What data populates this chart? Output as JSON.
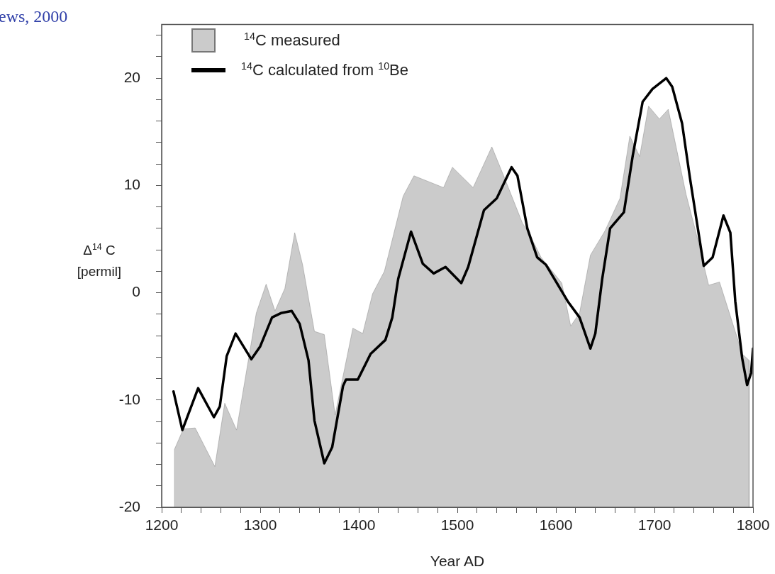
{
  "chart_data": {
    "type": "line",
    "ylabel": "Δ$^{14}$ C\n[permil]",
    "xlabel": "Year AD",
    "annotations": [
      "ews, 2000"
    ],
    "xlim": [
      1200,
      1800
    ],
    "ylim": [
      -20,
      25
    ],
    "xticks": [
      1200,
      {
        "value": 1220,
        "label": null
      },
      {
        "value": 1240,
        "label": null
      },
      {
        "value": 1260,
        "label": null
      },
      {
        "value": 1280,
        "label": null
      },
      1300,
      {
        "value": 1320,
        "label": null
      },
      {
        "value": 1340,
        "label": null
      },
      {
        "value": 1360,
        "label": null
      },
      {
        "value": 1380,
        "label": null
      },
      1400,
      {
        "value": 1420,
        "label": null
      },
      {
        "value": 1440,
        "label": null
      },
      {
        "value": 1460,
        "label": null
      },
      {
        "value": 1480,
        "label": null
      },
      1500,
      {
        "value": 1520,
        "label": null
      },
      {
        "value": 1540,
        "label": null
      },
      {
        "value": 1560,
        "label": null
      },
      {
        "value": 1580,
        "label": null
      },
      1600,
      {
        "value": 1620,
        "label": null
      },
      {
        "value": 1640,
        "label": null
      },
      {
        "value": 1660,
        "label": null
      },
      {
        "value": 1680,
        "label": null
      },
      1700,
      {
        "value": 1720,
        "label": null
      },
      {
        "value": 1740,
        "label": null
      },
      {
        "value": 1760,
        "label": null
      },
      {
        "value": 1780,
        "label": null
      },
      1800
    ],
    "yticks": [
      -20,
      {
        "value": -18,
        "label": null
      },
      {
        "value": -16,
        "label": null
      },
      {
        "value": -14,
        "label": null
      },
      {
        "value": -12,
        "label": null
      },
      -10,
      {
        "value": -8,
        "label": null
      },
      {
        "value": -6,
        "label": null
      },
      {
        "value": -4,
        "label": null
      },
      {
        "value": -2,
        "label": null
      },
      0,
      {
        "value": 2,
        "label": null
      },
      {
        "value": 4,
        "label": null
      },
      {
        "value": 6,
        "label": null
      },
      {
        "value": 8,
        "label": null
      },
      10,
      {
        "value": 12,
        "label": null
      },
      {
        "value": 14,
        "label": null
      },
      {
        "value": 16,
        "label": null
      },
      {
        "value": 18,
        "label": null
      },
      20,
      {
        "value": 22,
        "label": null
      },
      {
        "value": 24,
        "label": null
      }
    ],
    "legend": "top left",
    "series": [
      {
        "name": "$^{14}$C measured",
        "type": "area",
        "color": "#cbcbcb",
        "x": [
          1213,
          1213,
          1222,
          1234,
          1254,
          1264,
          1276,
          1296,
          1306,
          1315,
          1325,
          1335,
          1343,
          1355,
          1365,
          1376,
          1394,
          1404,
          1414,
          1426,
          1445,
          1456,
          1486,
          1495,
          1516,
          1524,
          1535,
          1547,
          1566,
          1573,
          1585,
          1606,
          1615,
          1624,
          1635,
          1650,
          1665,
          1675,
          1685,
          1694,
          1705,
          1714,
          1732,
          1741,
          1755,
          1766,
          1784,
          1789,
          1796,
          1796
        ],
        "values": [
          -20,
          -14.6,
          -12.7,
          -12.6,
          -16.2,
          -10.3,
          -12.8,
          -1.9,
          0.8,
          -1.7,
          0.4,
          5.6,
          2.6,
          -3.6,
          -3.9,
          -11.4,
          -3.3,
          -3.8,
          -0.1,
          2.0,
          9.0,
          10.9,
          9.8,
          11.7,
          9.8,
          11.4,
          13.6,
          10.9,
          6.5,
          5.5,
          3.3,
          0.9,
          -3.1,
          -1.9,
          3.5,
          5.8,
          8.8,
          14.6,
          12.7,
          17.4,
          16.2,
          17.1,
          9.2,
          6.0,
          0.7,
          1.0,
          -4.2,
          -5.7,
          -6.3,
          -20
        ]
      },
      {
        "name": "$^{14}$C calculated from $^{10}$Be",
        "type": "line",
        "color": "#000000",
        "x": [
          1212,
          1221,
          1237,
          1253,
          1259,
          1266,
          1275,
          1291,
          1300,
          1312,
          1321,
          1332,
          1340,
          1349,
          1355,
          1365,
          1373,
          1384,
          1387,
          1399,
          1412,
          1427,
          1434,
          1440,
          1453,
          1465,
          1476,
          1488,
          1504,
          1511,
          1527,
          1540,
          1555,
          1561,
          1571,
          1581,
          1590,
          1612,
          1624,
          1635,
          1640,
          1647,
          1655,
          1669,
          1678,
          1688,
          1698,
          1712,
          1718,
          1728,
          1736,
          1750,
          1759,
          1770,
          1777,
          1782,
          1789,
          1794,
          1798,
          1800
        ],
        "values": [
          -9.2,
          -12.8,
          -8.9,
          -11.6,
          -10.6,
          -5.9,
          -3.8,
          -6.2,
          -5.0,
          -2.3,
          -1.9,
          -1.7,
          -2.9,
          -6.3,
          -11.9,
          -15.9,
          -14.4,
          -8.7,
          -8.1,
          -8.1,
          -5.7,
          -4.4,
          -2.3,
          1.3,
          5.7,
          2.7,
          1.8,
          2.4,
          0.9,
          2.4,
          7.7,
          8.8,
          11.7,
          10.9,
          6.0,
          3.3,
          2.6,
          -0.8,
          -2.3,
          -5.2,
          -3.8,
          1.3,
          6.0,
          7.5,
          12.8,
          17.8,
          19.0,
          20.0,
          19.2,
          15.8,
          10.7,
          2.5,
          3.3,
          7.2,
          5.6,
          -0.8,
          -6.1,
          -8.6,
          -7.5,
          -5.2
        ]
      }
    ]
  }
}
